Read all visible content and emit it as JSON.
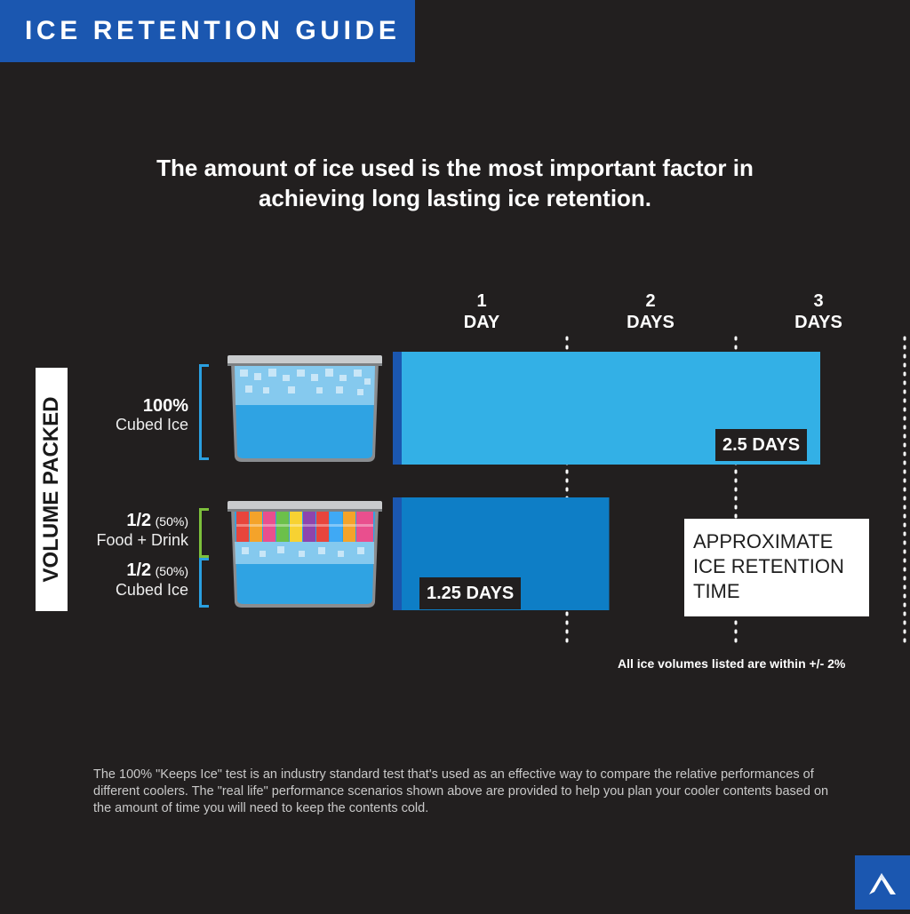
{
  "header": {
    "title": "ICE RETENTION GUIDE"
  },
  "headline": {
    "line1": "The amount of ice used is the most important factor in",
    "line2": "achieving long lasting ice retention."
  },
  "axis_title": "VOLUME PACKED",
  "rows": [
    {
      "pct": "100%",
      "desc": "Cubed Ice"
    },
    {
      "pct1": "1/2",
      "paren1": "(50%)",
      "desc1": "Food + Drink",
      "pct2": "1/2",
      "paren2": "(50%)",
      "desc2": "Cubed Ice"
    }
  ],
  "chart_data": {
    "type": "bar",
    "orientation": "horizontal",
    "x_ticks": [
      {
        "num": "1",
        "unit": "DAY",
        "value": 1
      },
      {
        "num": "2",
        "unit": "DAYS",
        "value": 2
      },
      {
        "num": "3",
        "unit": "DAYS",
        "value": 3
      }
    ],
    "categories": [
      "100% Cubed Ice",
      "1/2 (50%) Food + Drink / 1/2 (50%) Cubed Ice"
    ],
    "values": [
      2.5,
      1.25
    ],
    "value_labels": [
      "2.5 DAYS",
      "1.25 DAYS"
    ],
    "ylabel": "VOLUME PACKED",
    "grid": "dotted vertical lines at each day",
    "colors": [
      "#33b0e6",
      "#0e7ec6"
    ]
  },
  "legend_box": {
    "line1": "APPROXIMATE",
    "line2": "ICE RETENTION",
    "line3": "TIME"
  },
  "note": "All ice volumes listed are within +/- 2%",
  "footer": "The 100% \"Keeps Ice\" test is an industry standard test that's used as an effective way to compare the relative performances of different coolers. The \"real life\" performance scenarios shown above are provided to help you plan your cooler contents based on the amount of time you will need to keep the contents cold.",
  "colors": {
    "brand_blue": "#1b57b0",
    "background": "#221f1f",
    "bracket_blue": "#2a9fe0",
    "bracket_green": "#7dbf3b"
  },
  "icons": {
    "logo": "mountain-logo-icon"
  }
}
